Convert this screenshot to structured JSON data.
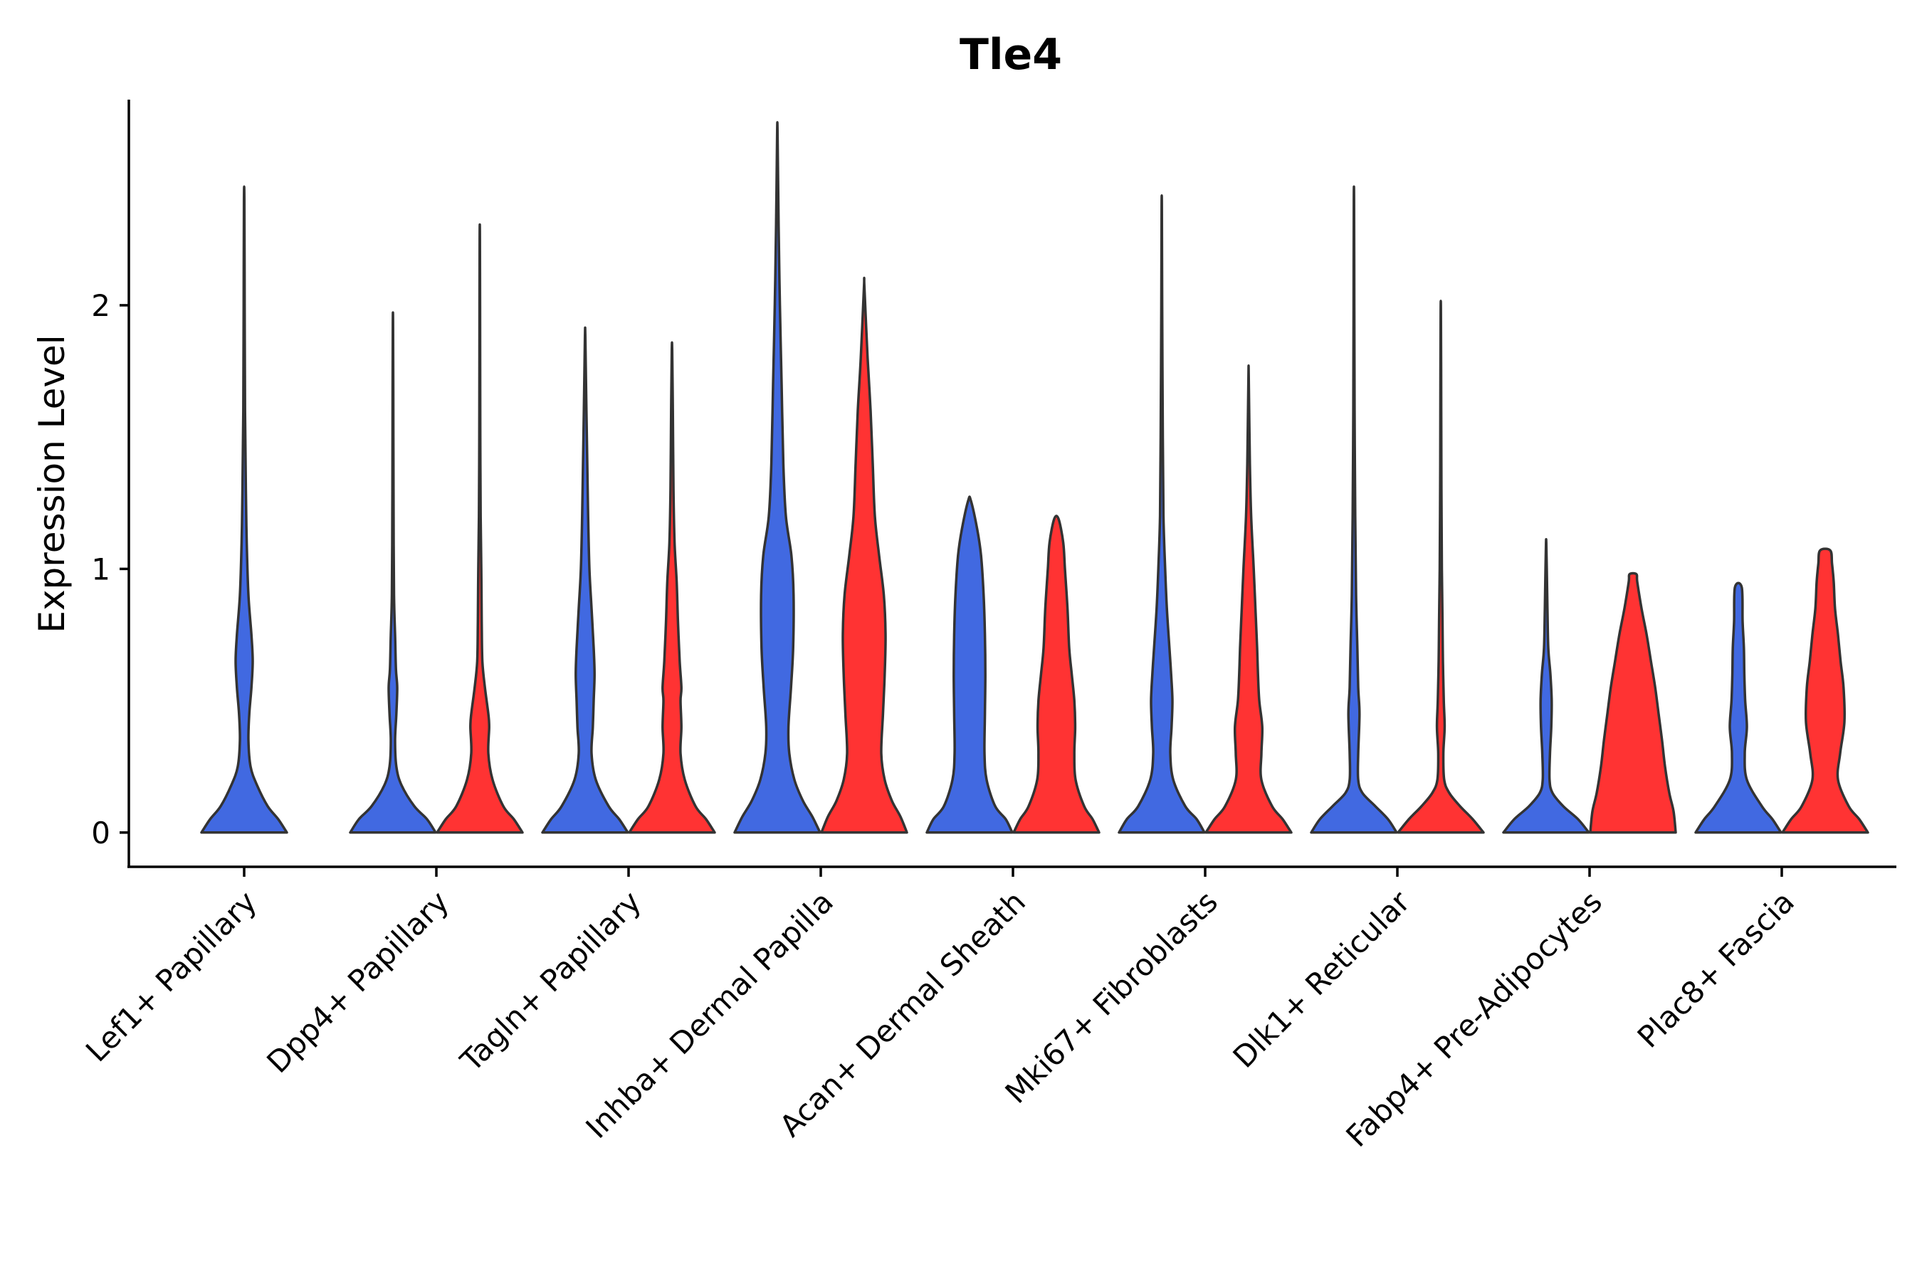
{
  "chart_data": {
    "type": "violin",
    "title": "Tle4",
    "xlabel": "",
    "ylabel": "Expression Level",
    "ylim": [
      -0.13,
      2.78
    ],
    "yticks": [
      0,
      1,
      2
    ],
    "grid": false,
    "legend": "none",
    "colors": {
      "group_a": "#4169E1",
      "group_b": "#FF3333",
      "outline": "#333333"
    },
    "categories": [
      "Lef1+ Papillary",
      "Dpp4+ Papillary",
      "Tagln+ Papillary",
      "Inhba+ Dermal Papilla",
      "Acan+ Dermal Sheath",
      "Mki67+ Fibroblasts",
      "Dlk1+ Reticular",
      "Fabp4+ Pre-Adipocytes",
      "Plac8+ Fascia"
    ],
    "violins": [
      {
        "category": "Lef1+ Papillary",
        "group": "a",
        "color": "#4169E1",
        "max": 2.4,
        "profile": [
          [
            0,
            1.0
          ],
          [
            0.05,
            0.8
          ],
          [
            0.1,
            0.55
          ],
          [
            0.18,
            0.3
          ],
          [
            0.25,
            0.15
          ],
          [
            0.35,
            0.1
          ],
          [
            0.45,
            0.12
          ],
          [
            0.55,
            0.17
          ],
          [
            0.65,
            0.2
          ],
          [
            0.75,
            0.17
          ],
          [
            0.9,
            0.1
          ],
          [
            1.1,
            0.06
          ],
          [
            1.3,
            0.04
          ],
          [
            1.6,
            0.02
          ],
          [
            2.0,
            0.012
          ],
          [
            2.4,
            0.005
          ]
        ]
      },
      {
        "category": "Dpp4+ Papillary",
        "group": "a",
        "color": "#4169E1",
        "max": 1.92,
        "profile": [
          [
            0,
            1.0
          ],
          [
            0.05,
            0.8
          ],
          [
            0.1,
            0.5
          ],
          [
            0.18,
            0.2
          ],
          [
            0.25,
            0.08
          ],
          [
            0.35,
            0.05
          ],
          [
            0.45,
            0.08
          ],
          [
            0.55,
            0.1
          ],
          [
            0.62,
            0.07
          ],
          [
            0.75,
            0.05
          ],
          [
            0.9,
            0.025
          ],
          [
            1.2,
            0.015
          ],
          [
            1.5,
            0.01
          ],
          [
            1.92,
            0.004
          ]
        ]
      },
      {
        "category": "Dpp4+ Papillary",
        "group": "b",
        "color": "#FF3333",
        "max": 2.25,
        "profile": [
          [
            0,
            1.0
          ],
          [
            0.05,
            0.8
          ],
          [
            0.1,
            0.55
          ],
          [
            0.2,
            0.3
          ],
          [
            0.3,
            0.2
          ],
          [
            0.4,
            0.22
          ],
          [
            0.45,
            0.2
          ],
          [
            0.55,
            0.12
          ],
          [
            0.65,
            0.06
          ],
          [
            0.8,
            0.045
          ],
          [
            1.0,
            0.035
          ],
          [
            1.2,
            0.02
          ],
          [
            1.5,
            0.012
          ],
          [
            1.8,
            0.008
          ],
          [
            2.25,
            0.004
          ]
        ]
      },
      {
        "category": "Tagln+ Papillary",
        "group": "a",
        "color": "#4169E1",
        "max": 1.88,
        "profile": [
          [
            0,
            1.0
          ],
          [
            0.05,
            0.8
          ],
          [
            0.1,
            0.55
          ],
          [
            0.2,
            0.25
          ],
          [
            0.3,
            0.15
          ],
          [
            0.4,
            0.18
          ],
          [
            0.5,
            0.2
          ],
          [
            0.6,
            0.22
          ],
          [
            0.7,
            0.2
          ],
          [
            0.85,
            0.15
          ],
          [
            1.0,
            0.1
          ],
          [
            1.2,
            0.07
          ],
          [
            1.4,
            0.05
          ],
          [
            1.6,
            0.03
          ],
          [
            1.88,
            0.005
          ]
        ]
      },
      {
        "category": "Tagln+ Papillary",
        "group": "b",
        "color": "#FF3333",
        "max": 1.83,
        "profile": [
          [
            0,
            1.0
          ],
          [
            0.05,
            0.8
          ],
          [
            0.1,
            0.55
          ],
          [
            0.2,
            0.3
          ],
          [
            0.3,
            0.2
          ],
          [
            0.4,
            0.22
          ],
          [
            0.5,
            0.2
          ],
          [
            0.55,
            0.22
          ],
          [
            0.65,
            0.18
          ],
          [
            0.8,
            0.14
          ],
          [
            0.95,
            0.11
          ],
          [
            1.1,
            0.06
          ],
          [
            1.3,
            0.035
          ],
          [
            1.6,
            0.02
          ],
          [
            1.83,
            0.005
          ]
        ]
      },
      {
        "category": "Inhba+ Dermal Papilla",
        "group": "a",
        "color": "#4169E1",
        "max": 2.65,
        "profile": [
          [
            0,
            1.0
          ],
          [
            0.06,
            0.82
          ],
          [
            0.12,
            0.6
          ],
          [
            0.2,
            0.4
          ],
          [
            0.3,
            0.28
          ],
          [
            0.4,
            0.26
          ],
          [
            0.55,
            0.32
          ],
          [
            0.7,
            0.37
          ],
          [
            0.9,
            0.38
          ],
          [
            1.05,
            0.33
          ],
          [
            1.2,
            0.2
          ],
          [
            1.4,
            0.14
          ],
          [
            1.7,
            0.1
          ],
          [
            2.0,
            0.06
          ],
          [
            2.3,
            0.03
          ],
          [
            2.65,
            0.005
          ]
        ]
      },
      {
        "category": "Inhba+ Dermal Papilla",
        "group": "b",
        "color": "#FF3333",
        "max": 2.07,
        "profile": [
          [
            0,
            1.0
          ],
          [
            0.06,
            0.85
          ],
          [
            0.12,
            0.65
          ],
          [
            0.2,
            0.48
          ],
          [
            0.3,
            0.4
          ],
          [
            0.45,
            0.44
          ],
          [
            0.6,
            0.48
          ],
          [
            0.75,
            0.5
          ],
          [
            0.9,
            0.46
          ],
          [
            1.05,
            0.35
          ],
          [
            1.2,
            0.25
          ],
          [
            1.4,
            0.2
          ],
          [
            1.6,
            0.15
          ],
          [
            1.8,
            0.08
          ],
          [
            2.07,
            0.005
          ]
        ]
      },
      {
        "category": "Acan+ Dermal Sheath",
        "group": "a",
        "color": "#4169E1",
        "max": 1.26,
        "profile": [
          [
            0,
            1.0
          ],
          [
            0.05,
            0.85
          ],
          [
            0.1,
            0.6
          ],
          [
            0.2,
            0.4
          ],
          [
            0.3,
            0.35
          ],
          [
            0.45,
            0.36
          ],
          [
            0.6,
            0.37
          ],
          [
            0.75,
            0.36
          ],
          [
            0.9,
            0.33
          ],
          [
            1.05,
            0.27
          ],
          [
            1.15,
            0.18
          ],
          [
            1.26,
            0.03
          ]
        ]
      },
      {
        "category": "Acan+ Dermal Sheath",
        "group": "b",
        "color": "#FF3333",
        "max": 1.19,
        "profile": [
          [
            0,
            1.0
          ],
          [
            0.05,
            0.85
          ],
          [
            0.1,
            0.65
          ],
          [
            0.2,
            0.45
          ],
          [
            0.3,
            0.42
          ],
          [
            0.4,
            0.44
          ],
          [
            0.5,
            0.42
          ],
          [
            0.6,
            0.36
          ],
          [
            0.7,
            0.3
          ],
          [
            0.85,
            0.26
          ],
          [
            1.0,
            0.2
          ],
          [
            1.1,
            0.16
          ],
          [
            1.19,
            0.05
          ]
        ]
      },
      {
        "category": "Mki67+ Fibroblasts",
        "group": "a",
        "color": "#4169E1",
        "max": 2.37,
        "profile": [
          [
            0,
            1.0
          ],
          [
            0.05,
            0.82
          ],
          [
            0.1,
            0.55
          ],
          [
            0.2,
            0.27
          ],
          [
            0.3,
            0.2
          ],
          [
            0.4,
            0.23
          ],
          [
            0.5,
            0.25
          ],
          [
            0.6,
            0.22
          ],
          [
            0.7,
            0.18
          ],
          [
            0.85,
            0.12
          ],
          [
            1.0,
            0.08
          ],
          [
            1.2,
            0.04
          ],
          [
            1.5,
            0.025
          ],
          [
            2.0,
            0.01
          ],
          [
            2.37,
            0.004
          ]
        ]
      },
      {
        "category": "Mki67+ Fibroblasts",
        "group": "b",
        "color": "#FF3333",
        "max": 1.73,
        "profile": [
          [
            0,
            1.0
          ],
          [
            0.05,
            0.8
          ],
          [
            0.1,
            0.55
          ],
          [
            0.2,
            0.3
          ],
          [
            0.3,
            0.3
          ],
          [
            0.4,
            0.32
          ],
          [
            0.5,
            0.25
          ],
          [
            0.6,
            0.22
          ],
          [
            0.7,
            0.2
          ],
          [
            0.85,
            0.16
          ],
          [
            1.0,
            0.12
          ],
          [
            1.2,
            0.06
          ],
          [
            1.4,
            0.03
          ],
          [
            1.73,
            0.004
          ]
        ]
      },
      {
        "category": "Dlk1+ Reticular",
        "group": "a",
        "color": "#4169E1",
        "max": 2.4,
        "profile": [
          [
            0,
            1.0
          ],
          [
            0.05,
            0.8
          ],
          [
            0.1,
            0.5
          ],
          [
            0.15,
            0.2
          ],
          [
            0.2,
            0.1
          ],
          [
            0.3,
            0.1
          ],
          [
            0.45,
            0.13
          ],
          [
            0.55,
            0.1
          ],
          [
            0.7,
            0.08
          ],
          [
            0.9,
            0.05
          ],
          [
            1.2,
            0.03
          ],
          [
            1.6,
            0.015
          ],
          [
            2.0,
            0.008
          ],
          [
            2.4,
            0.004
          ]
        ]
      },
      {
        "category": "Dlk1+ Reticular",
        "group": "b",
        "color": "#FF3333",
        "max": 1.97,
        "profile": [
          [
            0,
            1.0
          ],
          [
            0.05,
            0.75
          ],
          [
            0.1,
            0.45
          ],
          [
            0.15,
            0.2
          ],
          [
            0.2,
            0.08
          ],
          [
            0.3,
            0.06
          ],
          [
            0.4,
            0.09
          ],
          [
            0.5,
            0.07
          ],
          [
            0.65,
            0.05
          ],
          [
            0.8,
            0.04
          ],
          [
            1.0,
            0.025
          ],
          [
            1.3,
            0.015
          ],
          [
            1.6,
            0.01
          ],
          [
            1.97,
            0.004
          ]
        ]
      },
      {
        "category": "Fabp4+ Pre-Adipocytes",
        "group": "a",
        "color": "#4169E1",
        "max": 1.1,
        "profile": [
          [
            0,
            1.0
          ],
          [
            0.05,
            0.75
          ],
          [
            0.1,
            0.4
          ],
          [
            0.15,
            0.15
          ],
          [
            0.2,
            0.08
          ],
          [
            0.3,
            0.09
          ],
          [
            0.4,
            0.12
          ],
          [
            0.5,
            0.13
          ],
          [
            0.6,
            0.1
          ],
          [
            0.7,
            0.05
          ],
          [
            0.85,
            0.03
          ],
          [
            1.0,
            0.015
          ],
          [
            1.1,
            0.004
          ]
        ]
      },
      {
        "category": "Fabp4+ Pre-Adipocytes",
        "group": "b",
        "color": "#FF3333",
        "max": 0.98,
        "profile": [
          [
            0,
            1.0
          ],
          [
            0.08,
            0.95
          ],
          [
            0.15,
            0.85
          ],
          [
            0.25,
            0.75
          ],
          [
            0.35,
            0.68
          ],
          [
            0.45,
            0.6
          ],
          [
            0.55,
            0.52
          ],
          [
            0.65,
            0.42
          ],
          [
            0.75,
            0.32
          ],
          [
            0.85,
            0.2
          ],
          [
            0.95,
            0.1
          ],
          [
            0.98,
            0.08
          ]
        ]
      },
      {
        "category": "Plac8+ Fascia",
        "group": "a",
        "color": "#4169E1",
        "max": 0.93,
        "profile": [
          [
            0,
            1.0
          ],
          [
            0.05,
            0.8
          ],
          [
            0.1,
            0.55
          ],
          [
            0.2,
            0.2
          ],
          [
            0.3,
            0.15
          ],
          [
            0.4,
            0.2
          ],
          [
            0.5,
            0.16
          ],
          [
            0.6,
            0.14
          ],
          [
            0.7,
            0.13
          ],
          [
            0.8,
            0.1
          ],
          [
            0.93,
            0.08
          ]
        ]
      },
      {
        "category": "Plac8+ Fascia",
        "group": "b",
        "color": "#FF3333",
        "max": 1.07,
        "profile": [
          [
            0,
            1.0
          ],
          [
            0.05,
            0.8
          ],
          [
            0.1,
            0.55
          ],
          [
            0.2,
            0.3
          ],
          [
            0.3,
            0.35
          ],
          [
            0.42,
            0.45
          ],
          [
            0.55,
            0.43
          ],
          [
            0.65,
            0.36
          ],
          [
            0.75,
            0.3
          ],
          [
            0.85,
            0.23
          ],
          [
            0.95,
            0.2
          ],
          [
            1.02,
            0.16
          ],
          [
            1.07,
            0.12
          ]
        ]
      }
    ]
  }
}
